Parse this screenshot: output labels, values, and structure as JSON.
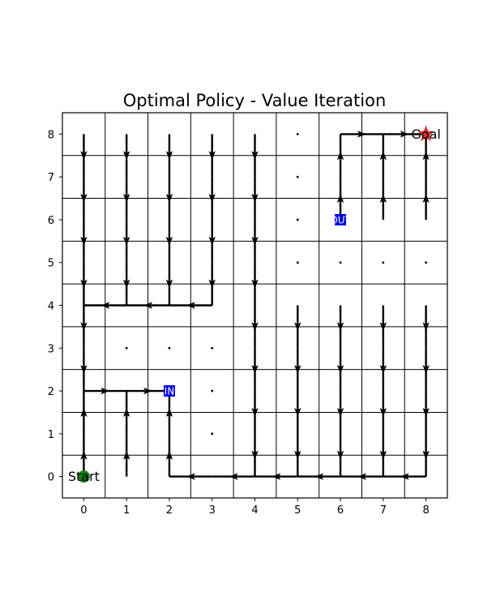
{
  "chart_data": {
    "type": "grid-policy",
    "title": "Optimal Policy - Value Iteration",
    "xlabel": "",
    "ylabel": "",
    "xlim": [
      -0.5,
      8.5
    ],
    "ylim": [
      -0.5,
      8.5
    ],
    "x_ticks": [
      "0",
      "1",
      "2",
      "3",
      "4",
      "5",
      "6",
      "7",
      "8"
    ],
    "y_ticks": [
      "0",
      "1",
      "2",
      "3",
      "4",
      "5",
      "6",
      "7",
      "8"
    ],
    "grid": true,
    "start": {
      "x": 0,
      "y": 0,
      "label": "Start",
      "color": "#1a7a1a"
    },
    "goal": {
      "x": 8,
      "y": 8,
      "label": "Goal",
      "color": "#e03030"
    },
    "portals": [
      {
        "x": 2,
        "y": 2,
        "label": "IN",
        "color": "#0000ee"
      },
      {
        "x": 6,
        "y": 6,
        "label": "OUT",
        "color": "#0000ee"
      }
    ],
    "dots": [
      [
        5,
        8
      ],
      [
        5,
        7
      ],
      [
        5,
        6
      ],
      [
        5,
        5
      ],
      [
        6,
        5
      ],
      [
        7,
        5
      ],
      [
        8,
        5
      ],
      [
        1,
        3
      ],
      [
        2,
        3
      ],
      [
        3,
        3
      ],
      [
        3,
        2
      ],
      [
        3,
        1
      ]
    ],
    "arrows": [
      [
        0,
        8,
        0,
        -1
      ],
      [
        1,
        8,
        0,
        -1
      ],
      [
        2,
        8,
        0,
        -1
      ],
      [
        3,
        8,
        0,
        -1
      ],
      [
        4,
        8,
        0,
        -1
      ],
      [
        0,
        7,
        0,
        -1
      ],
      [
        1,
        7,
        0,
        -1
      ],
      [
        2,
        7,
        0,
        -1
      ],
      [
        3,
        7,
        0,
        -1
      ],
      [
        4,
        7,
        0,
        -1
      ],
      [
        0,
        6,
        0,
        -1
      ],
      [
        1,
        6,
        0,
        -1
      ],
      [
        2,
        6,
        0,
        -1
      ],
      [
        3,
        6,
        0,
        -1
      ],
      [
        4,
        6,
        0,
        -1
      ],
      [
        0,
        5,
        0,
        -1
      ],
      [
        1,
        5,
        0,
        -1
      ],
      [
        2,
        5,
        0,
        -1
      ],
      [
        3,
        5,
        0,
        -1
      ],
      [
        4,
        5,
        0,
        -1
      ],
      [
        1,
        4,
        -1,
        0
      ],
      [
        2,
        4,
        -1,
        0
      ],
      [
        3,
        4,
        -1,
        0
      ],
      [
        0,
        4,
        0,
        -1
      ],
      [
        0,
        3,
        0,
        -1
      ],
      [
        4,
        4,
        0,
        -1
      ],
      [
        5,
        4,
        0,
        -1
      ],
      [
        6,
        4,
        0,
        -1
      ],
      [
        7,
        4,
        0,
        -1
      ],
      [
        8,
        4,
        0,
        -1
      ],
      [
        4,
        3,
        0,
        -1
      ],
      [
        5,
        3,
        0,
        -1
      ],
      [
        6,
        3,
        0,
        -1
      ],
      [
        7,
        3,
        0,
        -1
      ],
      [
        8,
        3,
        0,
        -1
      ],
      [
        4,
        2,
        0,
        -1
      ],
      [
        5,
        2,
        0,
        -1
      ],
      [
        6,
        2,
        0,
        -1
      ],
      [
        7,
        2,
        0,
        -1
      ],
      [
        8,
        2,
        0,
        -1
      ],
      [
        4,
        1,
        0,
        -1
      ],
      [
        5,
        1,
        0,
        -1
      ],
      [
        6,
        1,
        0,
        -1
      ],
      [
        7,
        1,
        0,
        -1
      ],
      [
        8,
        1,
        0,
        -1
      ],
      [
        0,
        2,
        1,
        0
      ],
      [
        1,
        2,
        1,
        0
      ],
      [
        0,
        0,
        0,
        1
      ],
      [
        0,
        1,
        0,
        1
      ],
      [
        1,
        0,
        0,
        1
      ],
      [
        1,
        1,
        0,
        1
      ],
      [
        2,
        0,
        0,
        1
      ],
      [
        2,
        1,
        0,
        1
      ],
      [
        8,
        0,
        -1,
        0
      ],
      [
        7,
        0,
        -1,
        0
      ],
      [
        6,
        0,
        -1,
        0
      ],
      [
        5,
        0,
        -1,
        0
      ],
      [
        4,
        0,
        -1,
        0
      ],
      [
        3,
        0,
        -1,
        0
      ],
      [
        6,
        6,
        0,
        1
      ],
      [
        6,
        7,
        0,
        1
      ],
      [
        7,
        6,
        0,
        1
      ],
      [
        7,
        7,
        0,
        1
      ],
      [
        8,
        6,
        0,
        1
      ],
      [
        8,
        7,
        0,
        1
      ],
      [
        6,
        8,
        1,
        0
      ],
      [
        7,
        8,
        1,
        0
      ]
    ]
  }
}
